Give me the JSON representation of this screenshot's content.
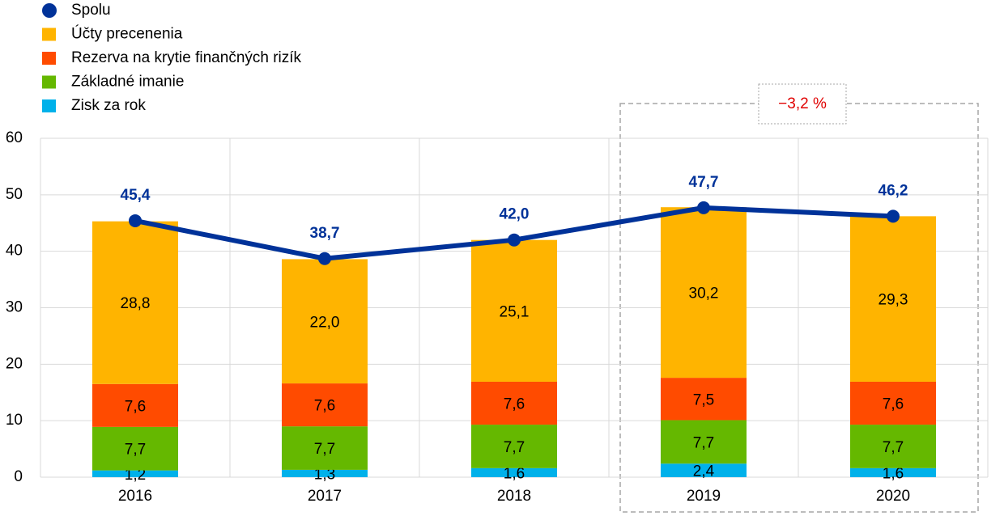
{
  "chart_data": {
    "type": "bar",
    "categories": [
      "2016",
      "2017",
      "2018",
      "2019",
      "2020"
    ],
    "series": [
      {
        "name": "Spolu",
        "type": "line",
        "color": "#003299",
        "values": [
          45.4,
          38.7,
          42.0,
          47.7,
          46.2
        ],
        "value_labels": [
          "45,4",
          "38,7",
          "42,0",
          "47,7",
          "46,2"
        ]
      },
      {
        "name": "Účty precenenia",
        "color": "#ffb400",
        "values": [
          28.8,
          22.0,
          25.1,
          30.2,
          29.3
        ],
        "value_labels": [
          "28,8",
          "22,0",
          "25,1",
          "30,2",
          "29,3"
        ]
      },
      {
        "name": "Rezerva na krytie finančných rizík",
        "color": "#ff4b00",
        "values": [
          7.6,
          7.6,
          7.6,
          7.5,
          7.6
        ],
        "value_labels": [
          "7,6",
          "7,6",
          "7,6",
          "7,5",
          "7,6"
        ]
      },
      {
        "name": "Základné imanie",
        "color": "#65b800",
        "values": [
          7.7,
          7.7,
          7.7,
          7.7,
          7.7
        ],
        "value_labels": [
          "7,7",
          "7,7",
          "7,7",
          "7,7",
          "7,7"
        ]
      },
      {
        "name": "Zisk za rok",
        "color": "#00b1ea",
        "values": [
          1.2,
          1.3,
          1.6,
          2.4,
          1.6
        ],
        "value_labels": [
          "1,2",
          "1,3",
          "1,6",
          "2,4",
          "1,6"
        ]
      }
    ],
    "annotation": "−3,2 %",
    "ylim": [
      0,
      60
    ],
    "yticks": [
      0,
      10,
      20,
      30,
      40,
      50,
      60
    ],
    "grid": true
  }
}
